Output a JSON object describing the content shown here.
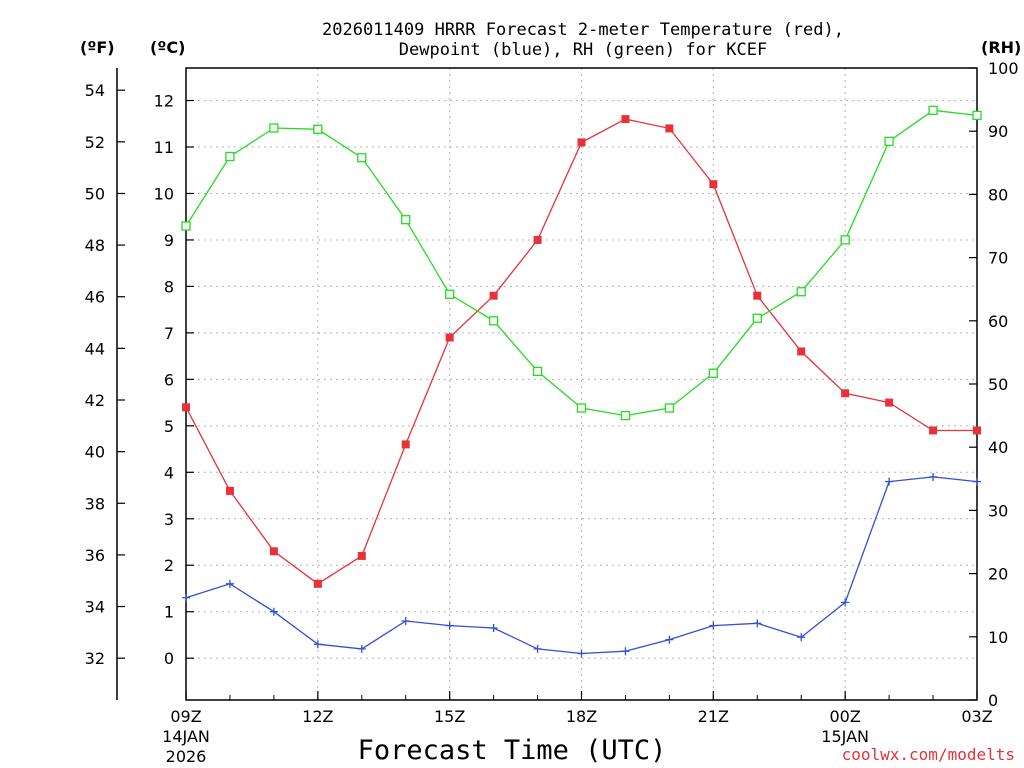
{
  "chart_data": {
    "type": "line",
    "title_line1": "2026011409 HRRR Forecast 2-meter Temperature (red),",
    "title_line2": "Dewpoint (blue), RH (green) for KCEF",
    "xlabel": "Forecast Time (UTC)",
    "credit": "coolwx.com/modelts",
    "unit_f": "(ºF)",
    "unit_c": "(ºC)",
    "unit_rh": "(RH)",
    "x_hours": [
      0,
      1,
      2,
      3,
      4,
      5,
      6,
      7,
      8,
      9,
      10,
      11,
      12,
      13,
      14,
      15,
      16,
      17,
      18
    ],
    "x_ticks": [
      {
        "hour": 0,
        "label": "09Z",
        "sub1": "14JAN",
        "sub2": "2026"
      },
      {
        "hour": 3,
        "label": "12Z",
        "sub1": "",
        "sub2": ""
      },
      {
        "hour": 6,
        "label": "15Z",
        "sub1": "",
        "sub2": ""
      },
      {
        "hour": 9,
        "label": "18Z",
        "sub1": "",
        "sub2": ""
      },
      {
        "hour": 12,
        "label": "21Z",
        "sub1": "",
        "sub2": ""
      },
      {
        "hour": 15,
        "label": "00Z",
        "sub1": "15JAN",
        "sub2": ""
      },
      {
        "hour": 18,
        "label": "03Z",
        "sub1": "",
        "sub2": ""
      }
    ],
    "ylim_c": [
      -0.9,
      12.7
    ],
    "y_ticks_c": [
      "0",
      "1",
      "2",
      "3",
      "4",
      "5",
      "6",
      "7",
      "8",
      "9",
      "10",
      "11",
      "12"
    ],
    "y_ticks_f": [
      "32",
      "34",
      "36",
      "38",
      "40",
      "42",
      "44",
      "46",
      "48",
      "50",
      "52",
      "54"
    ],
    "ylim_rh": [
      0,
      100
    ],
    "y_ticks_rh": [
      "0",
      "10",
      "20",
      "30",
      "40",
      "50",
      "60",
      "70",
      "80",
      "90",
      "100"
    ],
    "series": [
      {
        "name": "Temperature",
        "unit": "C",
        "color": "#e8313a",
        "marker": "filled-square",
        "values": [
          5.4,
          3.6,
          2.3,
          1.6,
          2.2,
          4.6,
          6.9,
          7.8,
          9.0,
          11.1,
          11.6,
          11.4,
          10.2,
          7.8,
          6.6,
          5.7,
          5.5,
          4.9,
          4.9
        ]
      },
      {
        "name": "Dewpoint",
        "unit": "C",
        "color": "#3050d8",
        "marker": "plus",
        "values": [
          1.3,
          1.6,
          1.0,
          0.3,
          0.2,
          0.8,
          0.7,
          0.65,
          0.2,
          0.1,
          0.15,
          0.4,
          0.7,
          0.75,
          0.45,
          1.2,
          3.8,
          3.9,
          3.8
        ]
      },
      {
        "name": "RH",
        "unit": "%",
        "color": "#22dd22",
        "marker": "open-square",
        "values": [
          75,
          86,
          90.5,
          90.3,
          85.8,
          76,
          64.2,
          60,
          52,
          46.2,
          45,
          46.2,
          51.7,
          60.4,
          64.6,
          72.8,
          88.4,
          93.3,
          92.5
        ]
      }
    ]
  }
}
